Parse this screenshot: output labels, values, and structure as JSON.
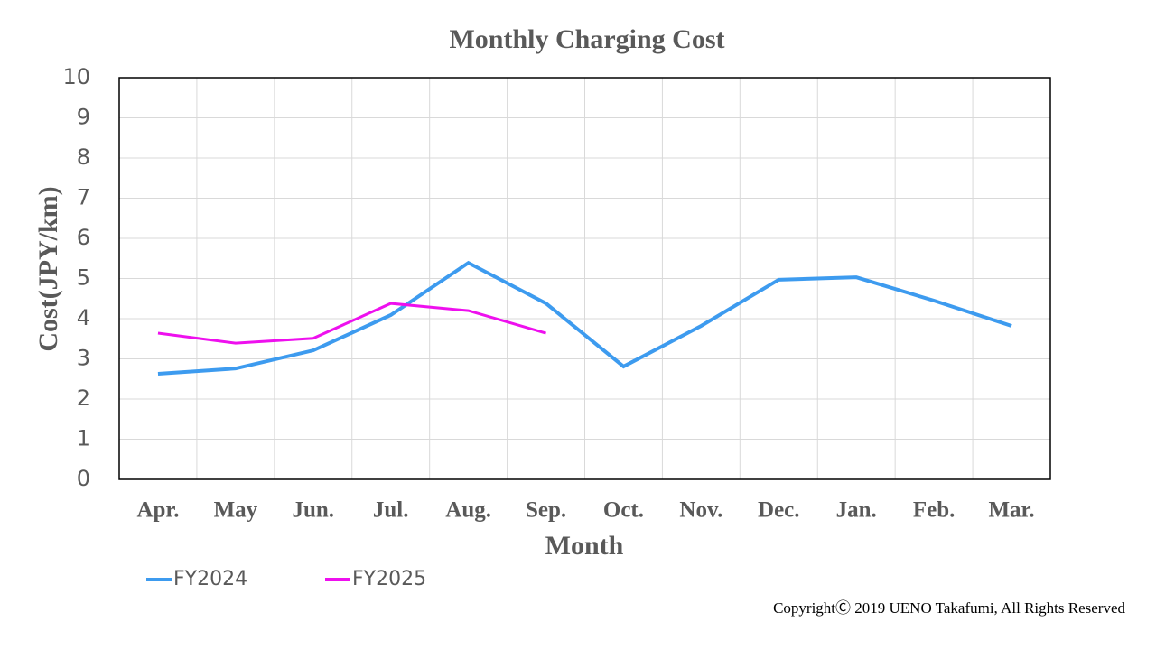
{
  "chart_data": {
    "type": "line",
    "title": "Monthly Charging Cost",
    "xlabel": "Month",
    "ylabel": "Cost(JPY/km)",
    "categories": [
      "Apr.",
      "May",
      "Jun.",
      "Jul.",
      "Aug.",
      "Sep.",
      "Oct.",
      "Nov.",
      "Dec.",
      "Jan.",
      "Feb.",
      "Mar."
    ],
    "series": [
      {
        "name": "FY2024",
        "color": "#3d9bef",
        "values": [
          2.63,
          2.76,
          3.21,
          4.09,
          5.39,
          4.38,
          2.81,
          3.82,
          4.97,
          5.03,
          4.45,
          3.82
        ]
      },
      {
        "name": "FY2025",
        "color": "#ee10ee",
        "values": [
          3.64,
          3.39,
          3.51,
          4.38,
          4.2,
          3.64,
          null,
          null,
          null,
          null,
          null,
          null
        ]
      }
    ],
    "ylim": [
      0,
      10
    ],
    "yticks": [
      0,
      1,
      2,
      3,
      4,
      5,
      6,
      7,
      8,
      9,
      10
    ],
    "grid": true,
    "legend": "bottom-left",
    "copyright": "CopyrightⒸ 2019 UENO Takafumi, All Rights Reserved"
  }
}
